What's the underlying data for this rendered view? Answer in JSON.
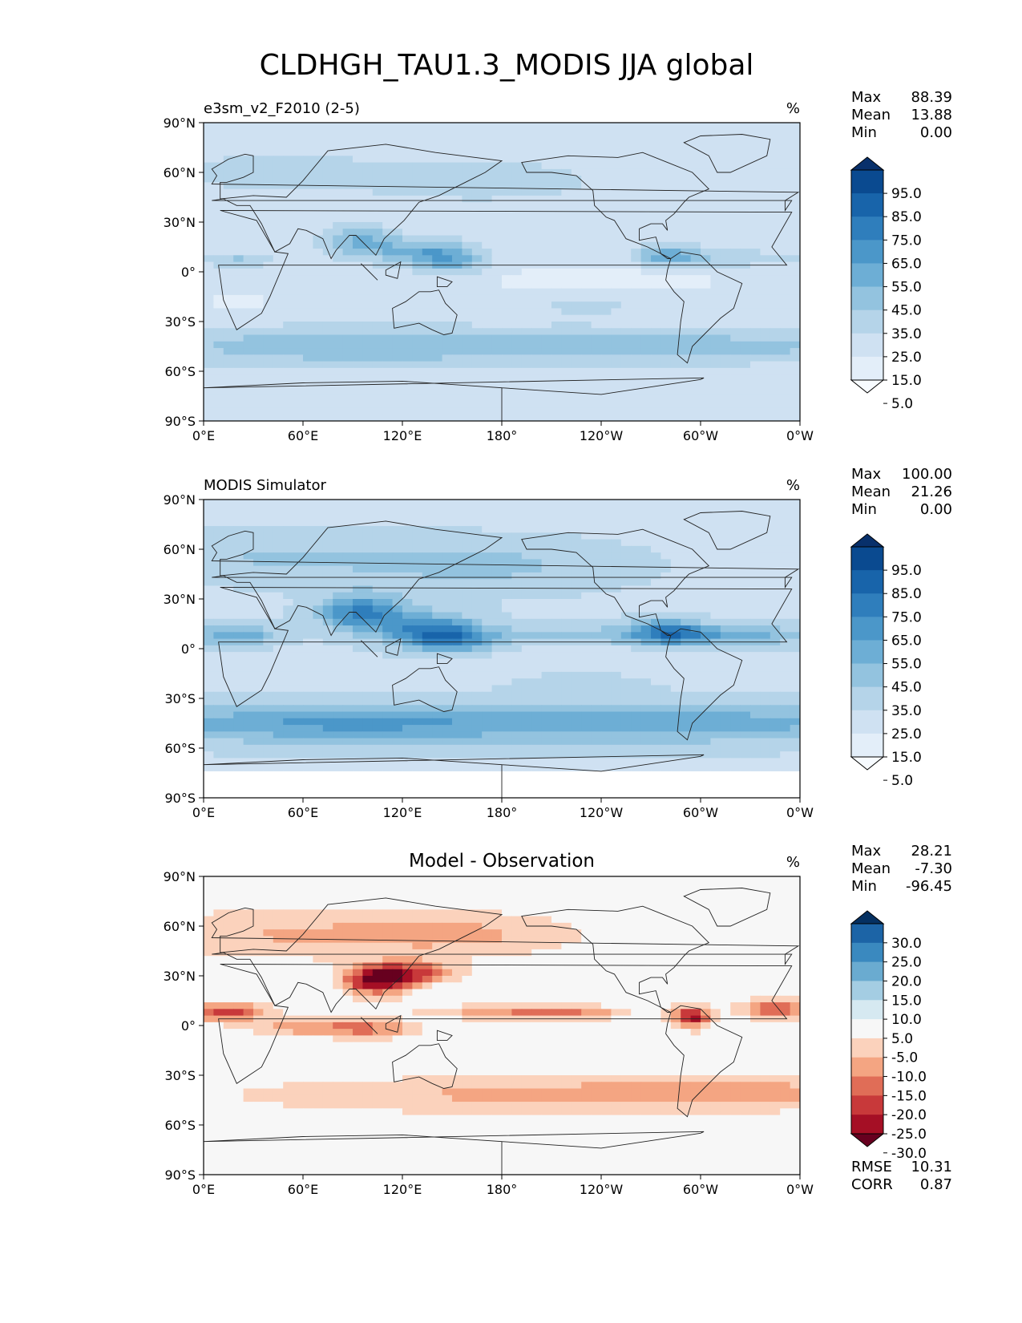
{
  "figure": {
    "title": "CLDHGH_TAU1.3_MODIS JJA global"
  },
  "axes": {
    "lat_ticks": [
      "90°N",
      "60°N",
      "30°N",
      "0°",
      "30°S",
      "60°S",
      "90°S"
    ],
    "lon_ticks": [
      "0°E",
      "60°E",
      "120°E",
      "180°",
      "120°W",
      "60°W",
      "0°W"
    ]
  },
  "chart_data": [
    {
      "type": "heatmap",
      "title": "e3sm_v2_F2010 (2-5)",
      "units": "%",
      "xlim": [
        0,
        360
      ],
      "ylim": [
        -90,
        90
      ],
      "stats": {
        "Max": "88.39",
        "Mean": "13.88",
        "Min": "0.00"
      },
      "colorbar": {
        "extend": "both",
        "tick_labels": [
          "95.0",
          "85.0",
          "75.0",
          "65.0",
          "55.0",
          "45.0",
          "35.0",
          "25.0",
          "15.0",
          "5.0"
        ],
        "colors": [
          "#f7fbff",
          "#e3eef9",
          "#cfe1f2",
          "#b5d4e9",
          "#93c3df",
          "#6daed5",
          "#4b97c9",
          "#2f7ebc",
          "#1864aa",
          "#0a4a90",
          "#08306b"
        ]
      }
    },
    {
      "type": "heatmap",
      "title": "MODIS Simulator",
      "units": "%",
      "xlim": [
        0,
        360
      ],
      "ylim": [
        -90,
        90
      ],
      "stats": {
        "Max": "100.00",
        "Mean": "21.26",
        "Min": "0.00"
      },
      "colorbar": {
        "extend": "both",
        "tick_labels": [
          "95.0",
          "85.0",
          "75.0",
          "65.0",
          "55.0",
          "45.0",
          "35.0",
          "25.0",
          "15.0",
          "5.0"
        ],
        "colors": [
          "#f7fbff",
          "#e3eef9",
          "#cfe1f2",
          "#b5d4e9",
          "#93c3df",
          "#6daed5",
          "#4b97c9",
          "#2f7ebc",
          "#1864aa",
          "#0a4a90",
          "#08306b"
        ]
      }
    },
    {
      "type": "heatmap",
      "title": "Model - Observation",
      "units": "%",
      "xlim": [
        0,
        360
      ],
      "ylim": [
        -90,
        90
      ],
      "stats": {
        "Max": "28.21",
        "Mean": "-7.30",
        "Min": "-96.45"
      },
      "metrics": {
        "RMSE": "10.31",
        "CORR": "0.87"
      },
      "colorbar": {
        "extend": "both",
        "tick_labels": [
          "30.0",
          "25.0",
          "20.0",
          "15.0",
          "10.0",
          "5.0",
          "-5.0",
          "-10.0",
          "-15.0",
          "-20.0",
          "-25.0",
          "-30.0"
        ],
        "colors": [
          "#67001f",
          "#a50f25",
          "#c8393a",
          "#e06d57",
          "#f4a582",
          "#fbd2bc",
          "#f7f7f7",
          "#d6e9f1",
          "#a4cde3",
          "#6aabd0",
          "#3a89bf",
          "#1c64a6",
          "#053061"
        ]
      }
    }
  ]
}
